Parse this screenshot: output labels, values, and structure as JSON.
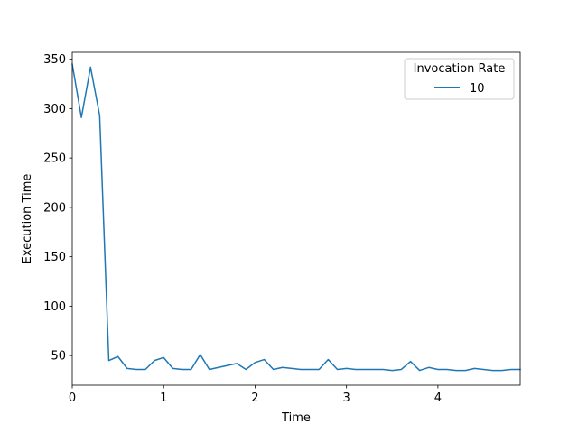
{
  "chart_data": {
    "type": "line",
    "xlabel": "Time",
    "ylabel": "Execution Time",
    "xlim": [
      0,
      4.9
    ],
    "ylim": [
      20,
      357
    ],
    "xticks": [
      0,
      1,
      2,
      3,
      4
    ],
    "xtick_labels": [
      "0",
      "1",
      "2",
      "3",
      "4"
    ],
    "yticks": [
      50,
      100,
      150,
      200,
      250,
      300,
      350
    ],
    "ytick_labels": [
      "50",
      "100",
      "150",
      "200",
      "250",
      "300",
      "350"
    ],
    "grid": false,
    "legend": {
      "title": "Invocation Rate",
      "placement": "top-right"
    },
    "series": [
      {
        "name": "10",
        "color": "#1f77b4",
        "x": [
          0,
          0.1,
          0.2,
          0.3,
          0.4,
          0.5,
          0.6,
          0.7,
          0.8,
          0.9,
          1.0,
          1.1,
          1.2,
          1.3,
          1.4,
          1.5,
          1.6,
          1.7,
          1.8,
          1.9,
          2.0,
          2.1,
          2.2,
          2.3,
          2.4,
          2.5,
          2.6,
          2.7,
          2.8,
          2.9,
          3.0,
          3.1,
          3.2,
          3.3,
          3.4,
          3.5,
          3.6,
          3.7,
          3.8,
          3.9,
          4.0,
          4.1,
          4.2,
          4.3,
          4.4,
          4.5,
          4.6,
          4.7,
          4.8,
          4.9
        ],
        "y": [
          345,
          291,
          342,
          293,
          45,
          49,
          37,
          36,
          36,
          45,
          48,
          37,
          36,
          36,
          51,
          36,
          38,
          40,
          42,
          36,
          43,
          46,
          36,
          38,
          37,
          36,
          36,
          36,
          46,
          36,
          37,
          36,
          36,
          36,
          36,
          35,
          36,
          44,
          35,
          38,
          36,
          36,
          35,
          35,
          37,
          36,
          35,
          35,
          36,
          36
        ]
      }
    ]
  }
}
